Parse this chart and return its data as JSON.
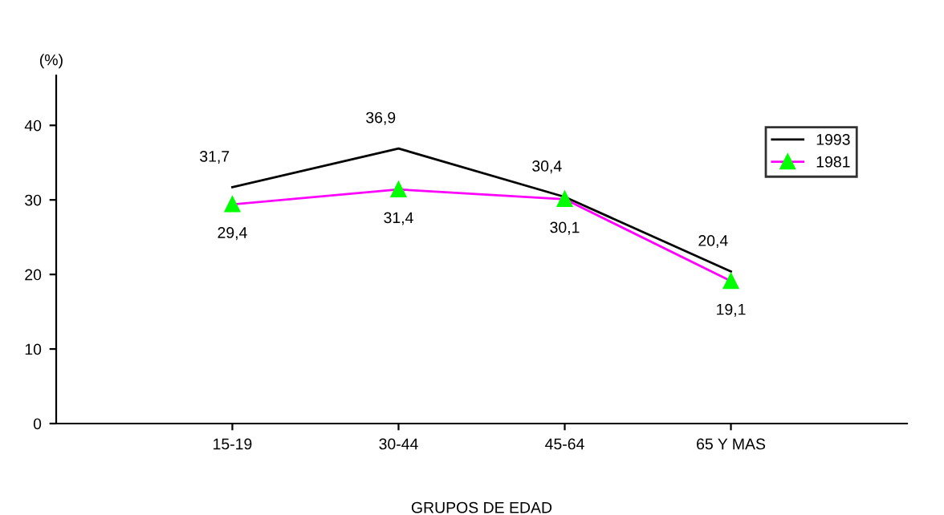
{
  "chart_data": {
    "type": "line",
    "xlabel": "GRUPOS DE EDAD",
    "ylabel": "(%)",
    "categories": [
      "15-19",
      "30-44",
      "45-64",
      "65 Y MAS"
    ],
    "series": [
      {
        "name": "1993",
        "color": "#000000",
        "marker": "none",
        "values": [
          31.7,
          36.9,
          30.4,
          20.4
        ],
        "value_labels": [
          "31,7",
          "36,9",
          "30,4",
          "20,4"
        ]
      },
      {
        "name": "1981",
        "color": "#ff00ff",
        "marker": "triangle",
        "colors": [
          "#00ff00",
          "#00ff00",
          "#00ff00",
          "#00ff00"
        ],
        "values": [
          29.4,
          31.4,
          30.1,
          19.1
        ],
        "value_labels": [
          "29,4",
          "31,4",
          "30,1",
          "19,1"
        ]
      }
    ],
    "ylim": [
      0,
      46.7
    ],
    "yticks": [
      0,
      10,
      20,
      30,
      40
    ],
    "grid": false,
    "legend": "right",
    "line_style": "solid"
  }
}
